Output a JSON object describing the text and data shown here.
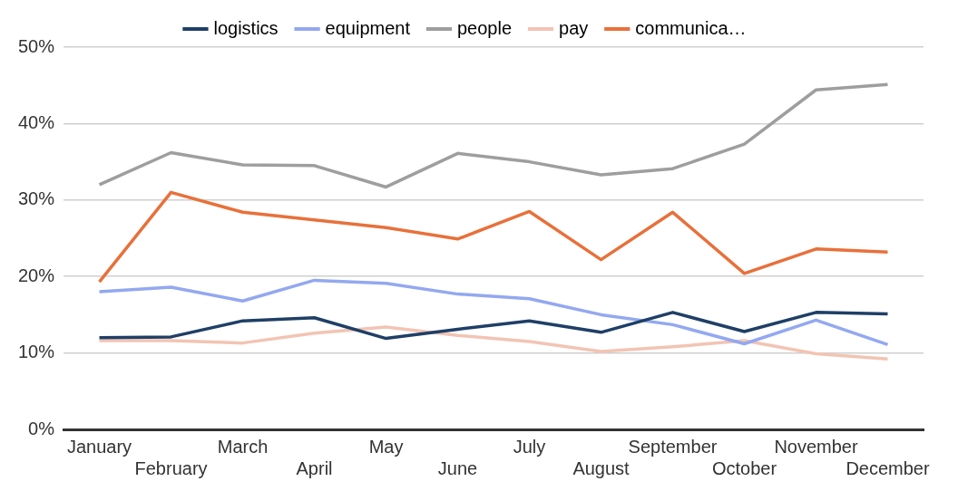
{
  "chart_data": {
    "type": "line",
    "categories": [
      "January",
      "February",
      "March",
      "April",
      "May",
      "June",
      "July",
      "August",
      "September",
      "October",
      "November",
      "December"
    ],
    "series": [
      {
        "name": "logistics",
        "color": "#1f3f66",
        "values": [
          12.0,
          12.1,
          14.2,
          14.6,
          11.9,
          13.1,
          14.2,
          12.7,
          15.3,
          12.8,
          15.3,
          15.1
        ]
      },
      {
        "name": "equipment",
        "color": "#93a8f0",
        "values": [
          18.0,
          18.6,
          16.8,
          19.5,
          19.1,
          17.7,
          17.1,
          15.0,
          13.7,
          11.2,
          14.3,
          11.1
        ]
      },
      {
        "name": "people",
        "color": "#9e9e9e",
        "values": [
          32.0,
          36.2,
          34.6,
          34.5,
          31.7,
          36.1,
          35.0,
          33.3,
          34.1,
          37.3,
          44.4,
          45.1
        ]
      },
      {
        "name": "pay",
        "color": "#f2c4b4",
        "values": [
          11.6,
          11.6,
          11.3,
          12.6,
          13.4,
          12.3,
          11.5,
          10.2,
          10.8,
          11.6,
          9.9,
          9.2
        ]
      },
      {
        "name": "communica…",
        "color": "#e8703a",
        "values": [
          19.3,
          31.0,
          28.4,
          27.4,
          26.4,
          24.9,
          28.5,
          22.2,
          28.4,
          20.4,
          23.6,
          23.2
        ]
      }
    ],
    "ylim": [
      0,
      50
    ],
    "yticks": [
      {
        "value": 0,
        "label": "0%"
      },
      {
        "value": 10,
        "label": "10%"
      },
      {
        "value": 20,
        "label": "20%"
      },
      {
        "value": 30,
        "label": "30%"
      },
      {
        "value": 40,
        "label": "40%"
      },
      {
        "value": 50,
        "label": "50%"
      }
    ],
    "grid": "y",
    "legend": "top",
    "marker": "none",
    "line_style": "solid"
  }
}
